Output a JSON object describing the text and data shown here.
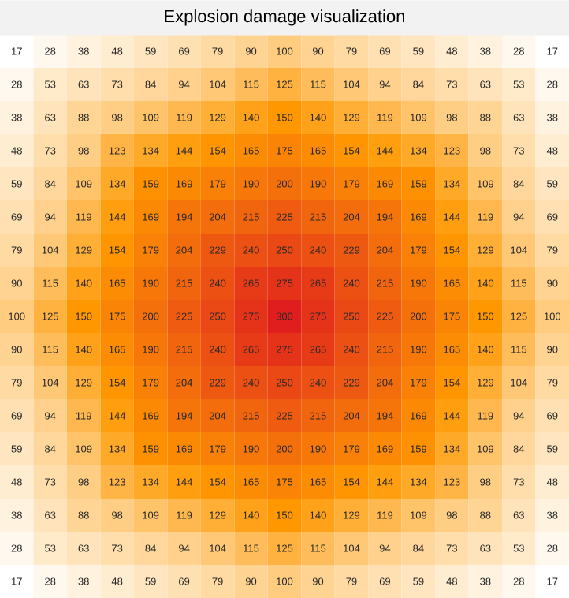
{
  "chart_data": {
    "type": "heatmap",
    "title": "Explosion damage visualization",
    "categories": [
      null,
      null,
      null,
      null,
      null,
      null,
      null,
      null,
      null,
      null,
      null,
      null,
      null,
      null,
      null,
      null,
      null
    ],
    "y_categories": [
      null,
      null,
      null,
      null,
      null,
      null,
      null,
      null,
      null,
      null,
      null,
      null,
      null,
      null,
      null,
      null,
      null
    ],
    "cells": [
      [
        17,
        28,
        38,
        48,
        59,
        69,
        79,
        90,
        100,
        90,
        79,
        69,
        59,
        48,
        38,
        28,
        17
      ],
      [
        28,
        53,
        63,
        73,
        84,
        94,
        104,
        115,
        125,
        115,
        104,
        94,
        84,
        73,
        63,
        53,
        28
      ],
      [
        38,
        63,
        88,
        98,
        109,
        119,
        129,
        140,
        150,
        140,
        129,
        119,
        109,
        98,
        88,
        63,
        38
      ],
      [
        48,
        73,
        98,
        123,
        134,
        144,
        154,
        165,
        175,
        165,
        154,
        144,
        134,
        123,
        98,
        73,
        48
      ],
      [
        59,
        84,
        109,
        134,
        159,
        169,
        179,
        190,
        200,
        190,
        179,
        169,
        159,
        134,
        109,
        84,
        59
      ],
      [
        69,
        94,
        119,
        144,
        169,
        194,
        204,
        215,
        225,
        215,
        204,
        194,
        169,
        144,
        119,
        94,
        69
      ],
      [
        79,
        104,
        129,
        154,
        179,
        204,
        229,
        240,
        250,
        240,
        229,
        204,
        179,
        154,
        129,
        104,
        79
      ],
      [
        90,
        115,
        140,
        165,
        190,
        215,
        240,
        265,
        275,
        265,
        240,
        215,
        190,
        165,
        140,
        115,
        90
      ],
      [
        100,
        125,
        150,
        175,
        200,
        225,
        250,
        275,
        300,
        275,
        250,
        225,
        200,
        175,
        150,
        125,
        100
      ],
      [
        90,
        115,
        140,
        165,
        190,
        215,
        240,
        265,
        275,
        265,
        240,
        215,
        190,
        165,
        140,
        115,
        90
      ],
      [
        79,
        104,
        129,
        154,
        179,
        204,
        229,
        240,
        250,
        240,
        229,
        204,
        179,
        154,
        129,
        104,
        79
      ],
      [
        69,
        94,
        119,
        144,
        169,
        194,
        204,
        215,
        225,
        215,
        204,
        194,
        169,
        144,
        119,
        94,
        69
      ],
      [
        59,
        84,
        109,
        134,
        159,
        169,
        179,
        190,
        200,
        190,
        179,
        169,
        159,
        134,
        109,
        84,
        59
      ],
      [
        48,
        73,
        98,
        123,
        134,
        144,
        154,
        165,
        175,
        165,
        154,
        144,
        134,
        123,
        98,
        73,
        48
      ],
      [
        38,
        63,
        88,
        98,
        109,
        119,
        129,
        140,
        150,
        140,
        129,
        119,
        109,
        98,
        88,
        63,
        38
      ],
      [
        28,
        53,
        63,
        73,
        84,
        94,
        104,
        115,
        125,
        115,
        104,
        94,
        84,
        73,
        63,
        53,
        28
      ],
      [
        17,
        28,
        38,
        48,
        59,
        69,
        79,
        90,
        100,
        90,
        79,
        69,
        59,
        48,
        38,
        28,
        17
      ]
    ],
    "data_labels": true
  }
}
